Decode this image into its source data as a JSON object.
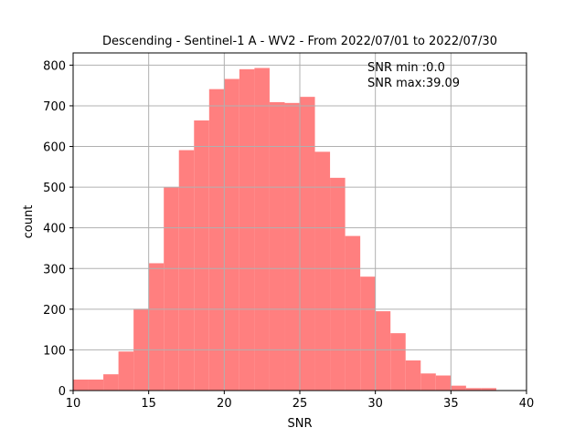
{
  "chart_data": {
    "type": "bar",
    "title": "Descending - Sentinel-1 A - WV2 - From 2022/07/01 to 2022/07/30",
    "xlabel": "SNR",
    "ylabel": "count",
    "xlim": [
      10,
      40
    ],
    "ylim": [
      0,
      830
    ],
    "xticks": [
      10,
      15,
      20,
      25,
      30,
      35,
      40
    ],
    "yticks": [
      0,
      100,
      200,
      300,
      400,
      500,
      600,
      700,
      800
    ],
    "grid": true,
    "bar_color": "#ff7f7f",
    "bin_edges": [
      10,
      11,
      12,
      13,
      14,
      15,
      16,
      17,
      18,
      19,
      20,
      21,
      22,
      23,
      24,
      25,
      26,
      27,
      28,
      29,
      30,
      31,
      32,
      33,
      34,
      35,
      36,
      37,
      38
    ],
    "values": [
      27,
      27,
      40,
      96,
      201,
      313,
      500,
      591,
      664,
      741,
      766,
      790,
      793,
      709,
      707,
      722,
      587,
      523,
      380,
      280,
      195,
      141,
      74,
      42,
      37,
      12,
      6,
      6
    ],
    "annotations": [
      "SNR min :0.0",
      "SNR max:39.09"
    ]
  }
}
